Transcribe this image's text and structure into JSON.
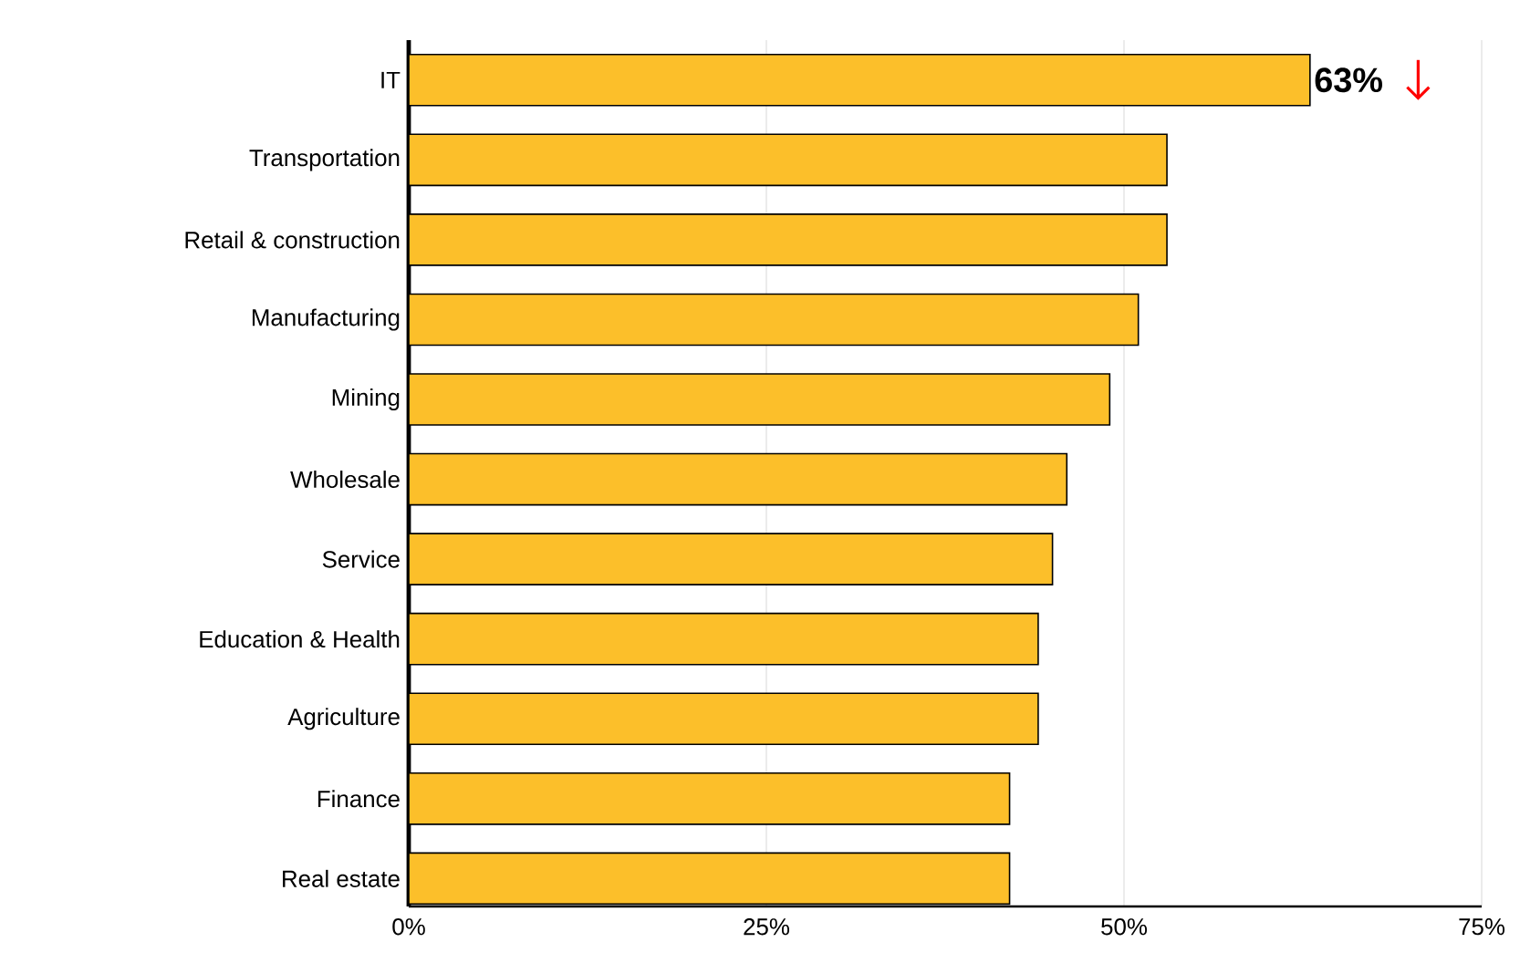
{
  "chart_data": {
    "type": "bar",
    "orientation": "horizontal",
    "categories": [
      "IT",
      "Transportation",
      "Retail & construction",
      "Manufacturing",
      "Mining",
      "Wholesale",
      "Service",
      "Education & Health",
      "Agriculture",
      "Finance",
      "Real estate"
    ],
    "values": [
      63,
      53,
      53,
      51,
      49,
      46,
      45,
      44,
      44,
      42,
      42
    ],
    "color": "#fcbf2a",
    "xlim": [
      0,
      75
    ],
    "xticks": [
      {
        "value": 0,
        "label": "0%"
      },
      {
        "value": 25,
        "label": "25%"
      },
      {
        "value": 50,
        "label": "50%"
      },
      {
        "value": 75,
        "label": "75%"
      }
    ],
    "grid": "x",
    "annotations": [
      {
        "text": "63%",
        "x": 63,
        "y": "IT"
      }
    ]
  }
}
